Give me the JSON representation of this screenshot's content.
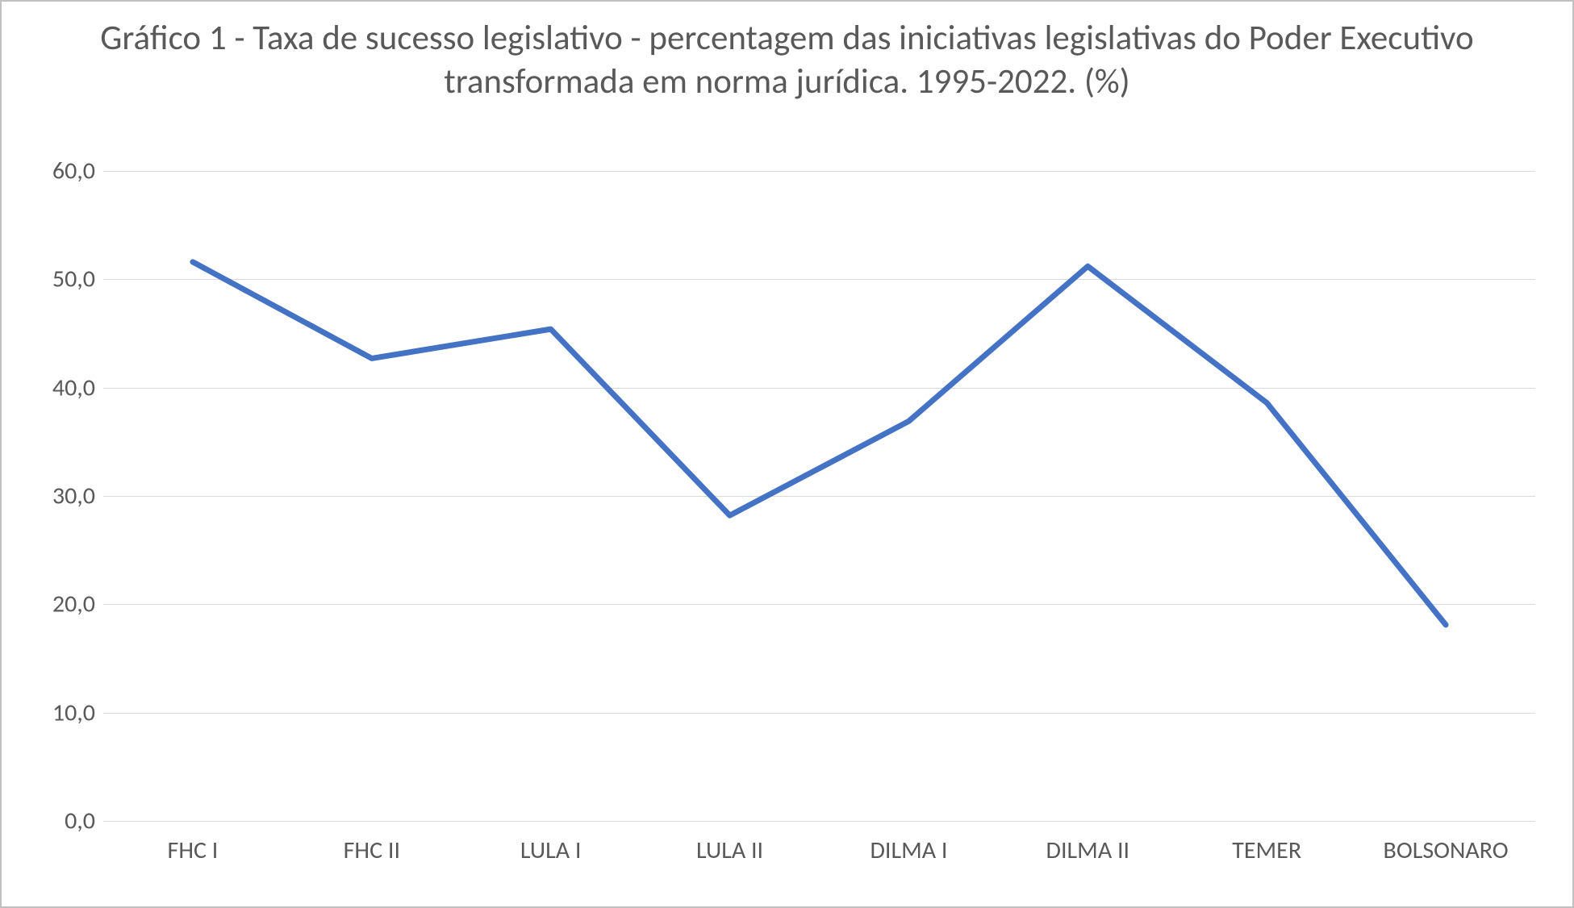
{
  "chart": {
    "type": "line",
    "title": "Gráfico 1 - Taxa de sucesso legislativo - percentagem das iniciativas legislativas do Poder Executivo transformada em norma jurídica. 1995-2022. (%)",
    "title_fontsize": 43,
    "title_color": "#595959",
    "background_color": "#ffffff",
    "border_color": "#c0c0c0",
    "categories": [
      "FHC I",
      "FHC II",
      "LULA I",
      "LULA II",
      "DILMA I",
      "DILMA II",
      "TEMER",
      "BOLSONARO"
    ],
    "values": [
      51.6,
      42.7,
      45.4,
      28.2,
      36.9,
      51.2,
      38.6,
      18.1
    ],
    "line_color": "#4472c4",
    "line_width": 7,
    "ylim": [
      0,
      60
    ],
    "ytick_step": 10,
    "y_ticks": [
      "0,0",
      "10,0",
      "20,0",
      "30,0",
      "40,0",
      "50,0",
      "60,0"
    ],
    "grid_color": "#d9d9d9",
    "axis_line_color": "#d9d9d9",
    "tick_label_color": "#595959",
    "tick_label_fontsize": 30,
    "decimal_separator": ","
  }
}
